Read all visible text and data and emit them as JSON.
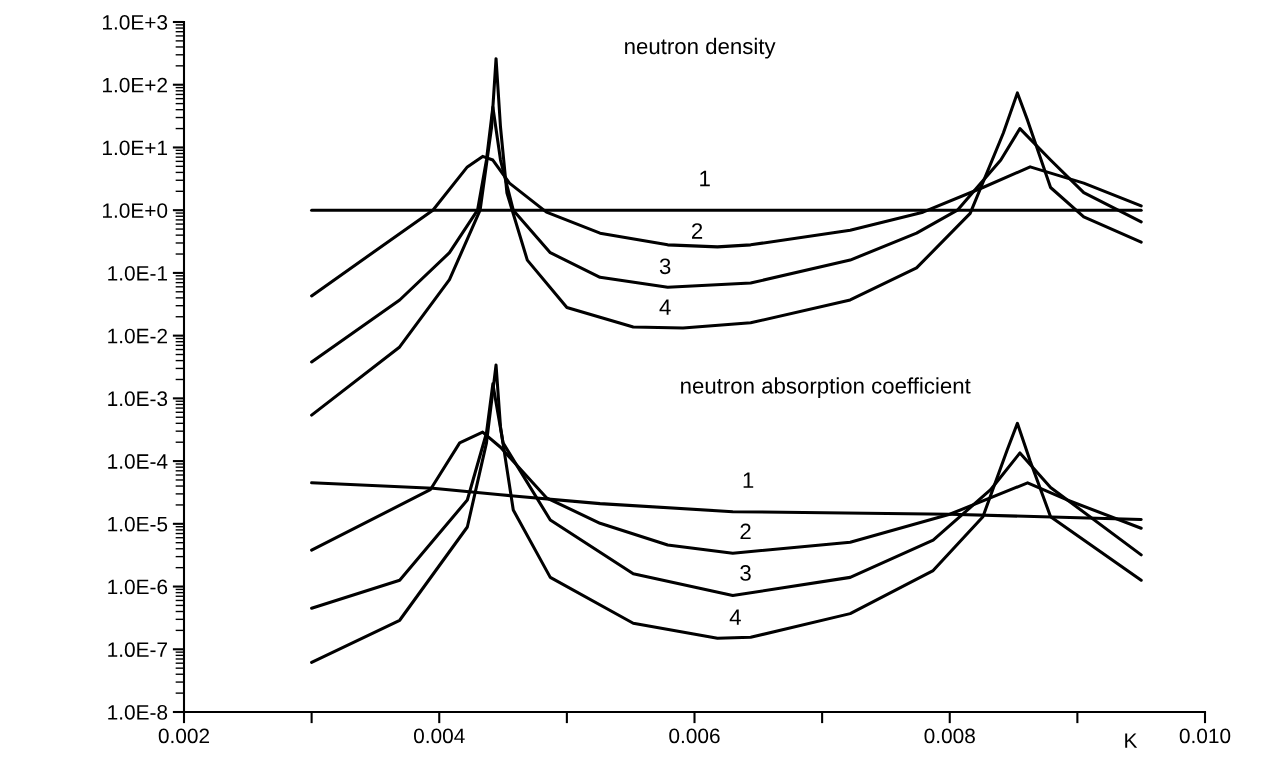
{
  "chart_data": {
    "type": "line",
    "xlabel": "K",
    "log": "y",
    "grid": false,
    "marker": "none",
    "line_style": "solid",
    "xlim": [
      0.002,
      0.01
    ],
    "xticks": [
      {
        "value": 0.002,
        "label": "0.002"
      },
      {
        "value": 0.003,
        "label": null
      },
      {
        "value": 0.004,
        "label": "0.004"
      },
      {
        "value": 0.005,
        "label": null
      },
      {
        "value": 0.006,
        "label": "0.006"
      },
      {
        "value": 0.007,
        "label": null
      },
      {
        "value": 0.008,
        "label": "0.008"
      },
      {
        "value": 0.009,
        "label": null
      },
      {
        "value": 0.01,
        "label": "0.010"
      }
    ],
    "ylim": [
      1e-08,
      1000
    ],
    "yticks": [
      {
        "value": 1e-08,
        "label": "1.0E-8"
      },
      {
        "value": 1e-07,
        "label": "1.0E-7"
      },
      {
        "value": 1e-06,
        "label": "1.0E-6"
      },
      {
        "value": 1e-05,
        "label": "1.0E-5"
      },
      {
        "value": 0.0001,
        "label": "1.0E-4"
      },
      {
        "value": 0.001,
        "label": "1.0E-3"
      },
      {
        "value": 0.01,
        "label": "1.0E-2"
      },
      {
        "value": 0.1,
        "label": "1.0E-1"
      },
      {
        "value": 1,
        "label": "1.0E+0"
      },
      {
        "value": 10,
        "label": "1.0E+1"
      },
      {
        "value": 100,
        "label": "1.0E+2"
      },
      {
        "value": 1000,
        "label": "1.0E+3"
      }
    ],
    "series": [
      {
        "name": "1",
        "color": "#000000",
        "x": [
          0.003,
          0.0095
        ],
        "values": [
          1,
          1
        ]
      },
      {
        "name": "2",
        "color": "#000000",
        "x": [
          0.003,
          0.00395,
          0.00422,
          0.00434,
          0.00442,
          0.00455,
          0.00484,
          0.00526,
          0.00579,
          0.00618,
          0.00644,
          0.00722,
          0.00779,
          0.00826,
          0.00863,
          0.00905,
          0.0095
        ],
        "values": [
          0.043,
          1.0,
          4.9,
          7.2,
          6.3,
          2.7,
          0.93,
          0.43,
          0.28,
          0.26,
          0.28,
          0.48,
          0.93,
          2.3,
          4.9,
          2.7,
          1.17
        ]
      },
      {
        "name": "3",
        "color": "#000000",
        "x": [
          0.003,
          0.00369,
          0.00408,
          0.0043,
          0.00437,
          0.00442,
          0.00448,
          0.00458,
          0.00487,
          0.00526,
          0.00579,
          0.00644,
          0.00722,
          0.00774,
          0.00806,
          0.0084,
          0.00855,
          0.00879,
          0.00905,
          0.0095
        ],
        "values": [
          0.0038,
          0.037,
          0.21,
          1,
          6.3,
          44,
          6.3,
          1,
          0.21,
          0.085,
          0.059,
          0.069,
          0.16,
          0.43,
          1,
          6.3,
          20,
          6.3,
          1.9,
          0.65
        ]
      },
      {
        "name": "4",
        "color": "#000000",
        "x": [
          0.003,
          0.00369,
          0.00408,
          0.00432,
          0.00441,
          0.004445,
          0.00448,
          0.00453,
          0.00469,
          0.005,
          0.00552,
          0.00591,
          0.00644,
          0.00722,
          0.00774,
          0.00816,
          0.00842,
          0.00853,
          0.00861,
          0.00879,
          0.00905,
          0.0095
        ],
        "values": [
          0.00054,
          0.0066,
          0.078,
          1,
          21,
          260,
          21,
          1.9,
          0.16,
          0.028,
          0.0137,
          0.0132,
          0.016,
          0.037,
          0.12,
          0.89,
          17,
          74,
          27,
          2.3,
          0.78,
          0.31
        ]
      },
      {
        "name": "1",
        "color": "#000000",
        "x": [
          0.003,
          0.00395,
          0.00448,
          0.00526,
          0.0063,
          0.008,
          0.0095
        ],
        "values": [
          4.5e-05,
          3.7e-05,
          2.9e-05,
          2.1e-05,
          1.56e-05,
          1.42e-05,
          1.17e-05
        ]
      },
      {
        "name": "2",
        "color": "#000000",
        "x": [
          0.003,
          0.00393,
          0.00416,
          0.00434,
          0.00448,
          0.00484,
          0.00526,
          0.00579,
          0.0063,
          0.00722,
          0.008,
          0.00861,
          0.00892,
          0.0095
        ],
        "values": [
          3.8e-06,
          3.5e-05,
          0.000195,
          0.00029,
          0.000166,
          2.6e-05,
          1.02e-05,
          4.6e-06,
          3.4e-06,
          5.1e-06,
          1.42e-05,
          4.5e-05,
          2.4e-05,
          8.5e-06
        ]
      },
      {
        "name": "3",
        "color": "#000000",
        "x": [
          0.003,
          0.00369,
          0.00422,
          0.00437,
          0.00442,
          0.0045,
          0.00487,
          0.00552,
          0.0063,
          0.00722,
          0.00787,
          0.00832,
          0.00855,
          0.00879,
          0.0095
        ],
        "values": [
          4.5e-07,
          1.26e-06,
          2.4e-05,
          0.00028,
          0.0017,
          0.000195,
          1.15e-05,
          1.6e-06,
          7.2e-07,
          1.4e-06,
          5.5e-06,
          3.5e-05,
          0.000135,
          3.8e-05,
          3.2e-06
        ]
      },
      {
        "name": "4",
        "color": "#000000",
        "x": [
          0.003,
          0.00369,
          0.00422,
          0.00437,
          0.004445,
          0.00448,
          0.00458,
          0.00487,
          0.00552,
          0.00618,
          0.00644,
          0.00722,
          0.00787,
          0.00826,
          0.00845,
          0.00853,
          0.00863,
          0.00879,
          0.0095
        ],
        "values": [
          6.2e-08,
          2.9e-07,
          8.9e-06,
          0.000195,
          0.0034,
          0.00035,
          1.66e-05,
          1.4e-06,
          2.6e-07,
          1.5e-07,
          1.55e-07,
          3.7e-07,
          1.8e-06,
          1.3e-05,
          0.00015,
          0.0004,
          0.0001,
          1.3e-05,
          1.26e-06
        ]
      }
    ],
    "annotations": [
      "neutron density",
      "neutron absorption coefficient"
    ]
  }
}
